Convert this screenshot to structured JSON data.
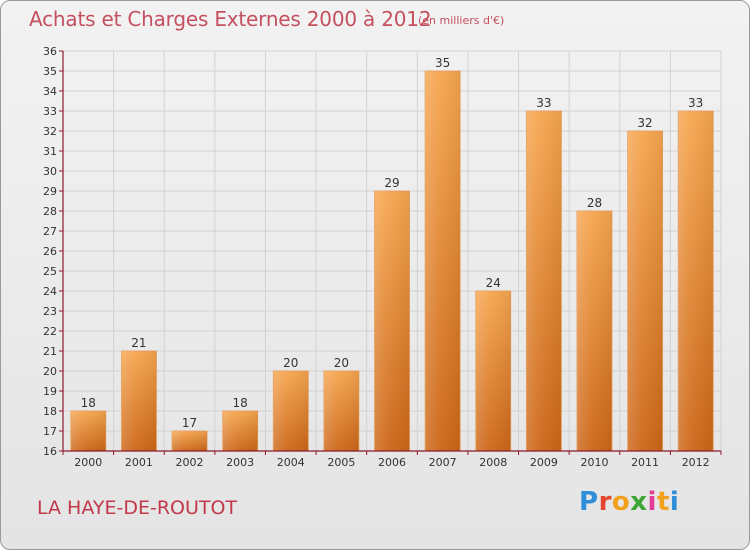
{
  "title": "Achats et Charges Externes 2000 à 2012",
  "subtitle": "(en milliers d'€)",
  "place": "LA HAYE-DE-ROUTOT",
  "logo": {
    "text": "Proxiti"
  },
  "colors": {
    "bar_top": "#f5a24e",
    "bar_bottom": "#cf6a1c",
    "title": "#c45060",
    "axis": "#8c1a2e"
  },
  "chart_data": {
    "type": "bar",
    "categories": [
      "2000",
      "2001",
      "2002",
      "2003",
      "2004",
      "2005",
      "2006",
      "2007",
      "2008",
      "2009",
      "2010",
      "2011",
      "2012"
    ],
    "values": [
      18,
      21,
      17,
      18,
      20,
      20,
      29,
      35,
      24,
      33,
      28,
      32,
      33
    ],
    "ylim": [
      16,
      36
    ],
    "yticks": [
      16,
      17,
      18,
      19,
      20,
      21,
      22,
      23,
      24,
      25,
      26,
      27,
      28,
      29,
      30,
      31,
      32,
      33,
      34,
      35,
      36
    ],
    "grid": true,
    "data_labels": true
  }
}
